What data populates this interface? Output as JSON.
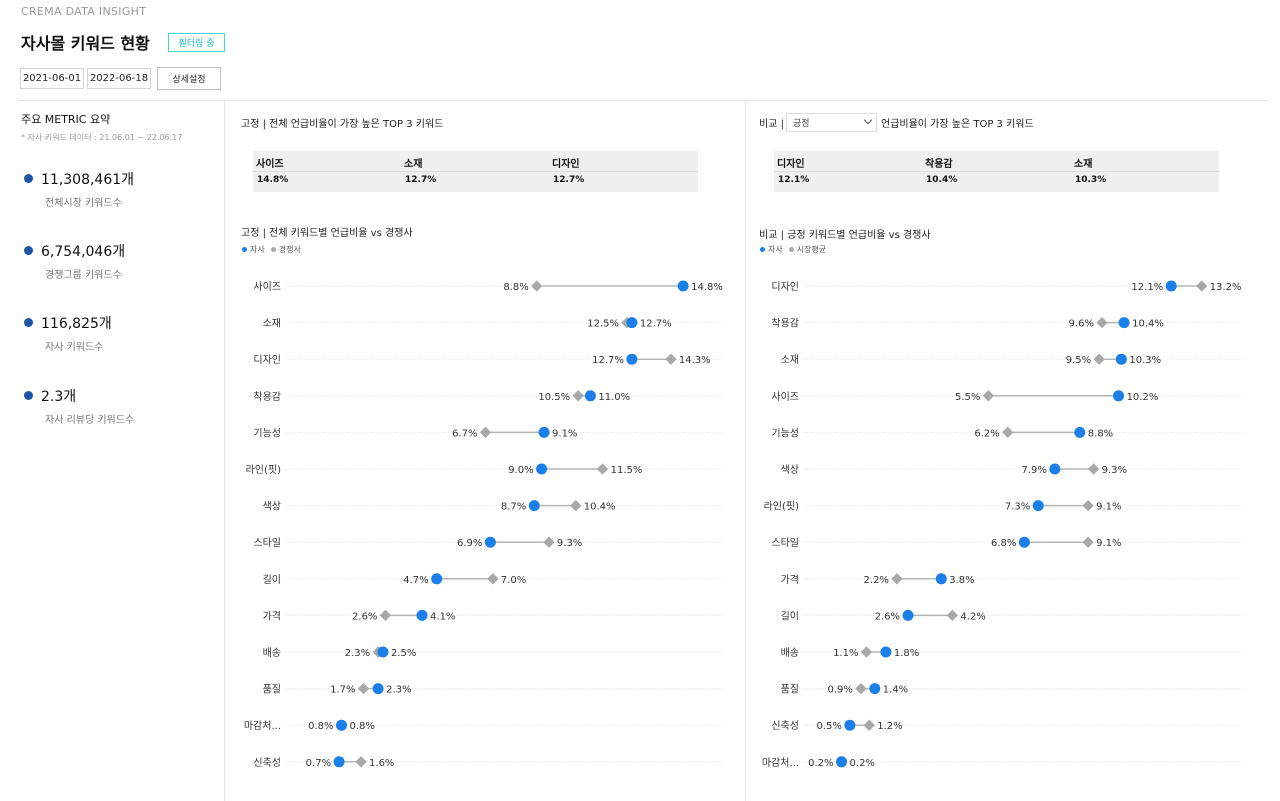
{
  "header": {
    "brand": "CREMA DATA INSIGHT",
    "title": "자사몰 키워드 현황",
    "filter_label": "필터링 중",
    "date_start": "2021-06-01",
    "date_end": "2022-06-18",
    "detail_label": "상세설정"
  },
  "sidebar": {
    "title": "주요 METRIC 요약",
    "subtitle": "* 자사 키워드 데이터 : 21.06.01 ~ 22.06.17",
    "metrics": [
      {
        "value": "11,308,461개",
        "label": "전체시장  키워드수"
      },
      {
        "value": "6,754,046개",
        "label": "경쟁그룹 키워드수"
      },
      {
        "value": "116,825개",
        "label": "자사 키워드수"
      },
      {
        "value": "2.3개",
        "label": "자사 리뷰당 키워드수"
      }
    ]
  },
  "colors": {
    "ours": "#1a7fe8",
    "competitor": "#a8a8a8",
    "dot_metric": "#1c56a8",
    "filter_border": "#3fd6d6"
  },
  "left_panel": {
    "top_title": "고정 | 전체 언급비율이 가장 높은 TOP 3 키워드",
    "top3": [
      {
        "keyword": "사이즈",
        "percent": "14.8%"
      },
      {
        "keyword": "소재",
        "percent": "12.7%"
      },
      {
        "keyword": "디자인",
        "percent": "12.7%"
      }
    ],
    "chart_title": "고정 | 전체 키워드별 언급비율 vs 경쟁사",
    "legend_ours": "자사",
    "legend_other": "경쟁사"
  },
  "right_panel": {
    "top_prefix": "비교 |",
    "select_value": "긍정",
    "top_suffix": "언급비율이 가장 높은 TOP 3 키워드",
    "top3": [
      {
        "keyword": "디자인",
        "percent": "12.1%"
      },
      {
        "keyword": "착용감",
        "percent": "10.4%"
      },
      {
        "keyword": "소재",
        "percent": "10.3%"
      }
    ],
    "chart_title": "비교 | 긍정 키워드별 언급비율 vs 경쟁사",
    "legend_ours": "자사",
    "legend_other": "시장평균"
  },
  "chart_data": [
    {
      "type": "dumbbell",
      "title": "고정 | 전체 키워드별 언급비율 vs 경쟁사",
      "unit": "%",
      "xlim": [
        0,
        15
      ],
      "grid": false,
      "categories": [
        "사이즈",
        "소재",
        "디자인",
        "착용감",
        "기능성",
        "라인(핏)",
        "색상",
        "스타일",
        "길이",
        "가격",
        "배송",
        "품질",
        "마감처...",
        "신축성"
      ],
      "series": [
        {
          "name": "자사",
          "values": [
            14.8,
            12.7,
            12.7,
            11.0,
            9.1,
            9.0,
            8.7,
            6.9,
            4.7,
            4.1,
            2.5,
            2.3,
            0.8,
            0.7
          ]
        },
        {
          "name": "경쟁사",
          "values": [
            8.8,
            12.5,
            14.3,
            10.5,
            6.7,
            11.5,
            10.4,
            9.3,
            7.0,
            2.6,
            2.3,
            1.7,
            0.8,
            1.6
          ]
        }
      ]
    },
    {
      "type": "dumbbell",
      "title": "비교 | 긍정 키워드별 언급비율 vs 경쟁사",
      "unit": "%",
      "xlim": [
        0,
        13.5
      ],
      "grid": false,
      "categories": [
        "디자인",
        "착용감",
        "소재",
        "사이즈",
        "기능성",
        "색상",
        "라인(핏)",
        "스타일",
        "가격",
        "길이",
        "배송",
        "품질",
        "신축성",
        "마감처..."
      ],
      "series": [
        {
          "name": "자사",
          "values": [
            12.1,
            10.4,
            10.3,
            10.2,
            8.8,
            7.9,
            7.3,
            6.8,
            3.8,
            2.6,
            1.8,
            1.4,
            0.5,
            0.2
          ]
        },
        {
          "name": "시장평균",
          "values": [
            13.2,
            9.6,
            9.5,
            5.5,
            6.2,
            9.3,
            9.1,
            9.1,
            2.2,
            4.2,
            1.1,
            0.9,
            1.2,
            0.2
          ]
        }
      ]
    }
  ]
}
